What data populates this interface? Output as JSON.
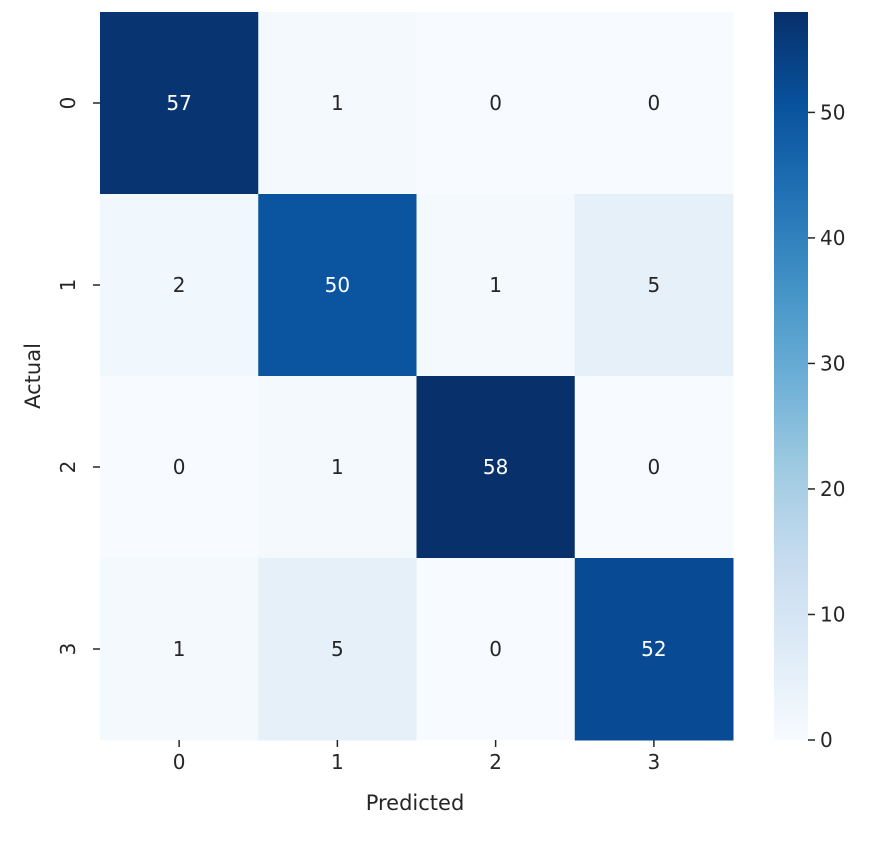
{
  "chart_data": {
    "type": "heatmap",
    "title": "",
    "xlabel": "Predicted",
    "ylabel": "Actual",
    "x_categories": [
      "0",
      "1",
      "2",
      "3"
    ],
    "y_categories": [
      "0",
      "1",
      "2",
      "3"
    ],
    "values": [
      [
        57,
        1,
        0,
        0
      ],
      [
        2,
        50,
        1,
        5
      ],
      [
        0,
        1,
        58,
        0
      ],
      [
        1,
        5,
        0,
        52
      ]
    ],
    "annotations": true,
    "colormap": "Blues",
    "colorbar": {
      "min": 0,
      "max": 58,
      "ticks": [
        "0",
        "10",
        "20",
        "30",
        "40",
        "50"
      ]
    }
  }
}
